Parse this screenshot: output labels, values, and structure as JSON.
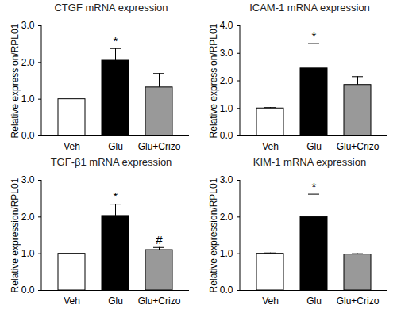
{
  "chart_data": [
    {
      "type": "bar",
      "title": "CTGF mRNA expression",
      "categories": [
        "Veh",
        "Glu",
        "Glu+Crizo"
      ],
      "values": [
        1.0,
        2.05,
        1.32
      ],
      "errors": [
        0.0,
        0.33,
        0.38
      ],
      "colors": [
        "#ffffff",
        "#000000",
        "#999999"
      ],
      "ylabel": "Relative expression/RPL01",
      "ylim": [
        0,
        3
      ],
      "yticks": [
        0,
        1,
        2,
        3
      ],
      "annotations": [
        {
          "category": "Glu",
          "text": "*"
        }
      ]
    },
    {
      "type": "bar",
      "title": "ICAM-1 mRNA expression",
      "categories": [
        "Veh",
        "Glu",
        "Glu+Crizo"
      ],
      "values": [
        1.0,
        2.45,
        1.85
      ],
      "errors": [
        0.03,
        0.9,
        0.3
      ],
      "colors": [
        "#ffffff",
        "#000000",
        "#999999"
      ],
      "ylabel": "Relative expression/RPL01",
      "ylim": [
        0,
        4
      ],
      "yticks": [
        0,
        1,
        2,
        3,
        4
      ],
      "annotations": [
        {
          "category": "Glu",
          "text": "*"
        }
      ]
    },
    {
      "type": "bar",
      "title": "TGF-β1 mRNA expression",
      "categories": [
        "Veh",
        "Glu",
        "Glu+Crizo"
      ],
      "values": [
        1.0,
        2.03,
        1.1
      ],
      "errors": [
        0.0,
        0.32,
        0.07
      ],
      "colors": [
        "#ffffff",
        "#000000",
        "#999999"
      ],
      "ylabel": "Relative expression/RPL01",
      "ylim": [
        0,
        3
      ],
      "yticks": [
        0,
        1,
        2,
        3
      ],
      "annotations": [
        {
          "category": "Glu",
          "text": "*"
        },
        {
          "category": "Glu+Crizo",
          "text": "#"
        }
      ]
    },
    {
      "type": "bar",
      "title": "KIM-1 mRNA expression",
      "categories": [
        "Veh",
        "Glu",
        "Glu+Crizo"
      ],
      "values": [
        1.0,
        2.0,
        0.98
      ],
      "errors": [
        0.02,
        0.62,
        0.02
      ],
      "colors": [
        "#ffffff",
        "#000000",
        "#999999"
      ],
      "ylabel": "Relative expression/RPL01",
      "ylim": [
        0,
        3
      ],
      "yticks": [
        0,
        1,
        2,
        3
      ],
      "annotations": [
        {
          "category": "Glu",
          "text": "*"
        }
      ]
    }
  ]
}
